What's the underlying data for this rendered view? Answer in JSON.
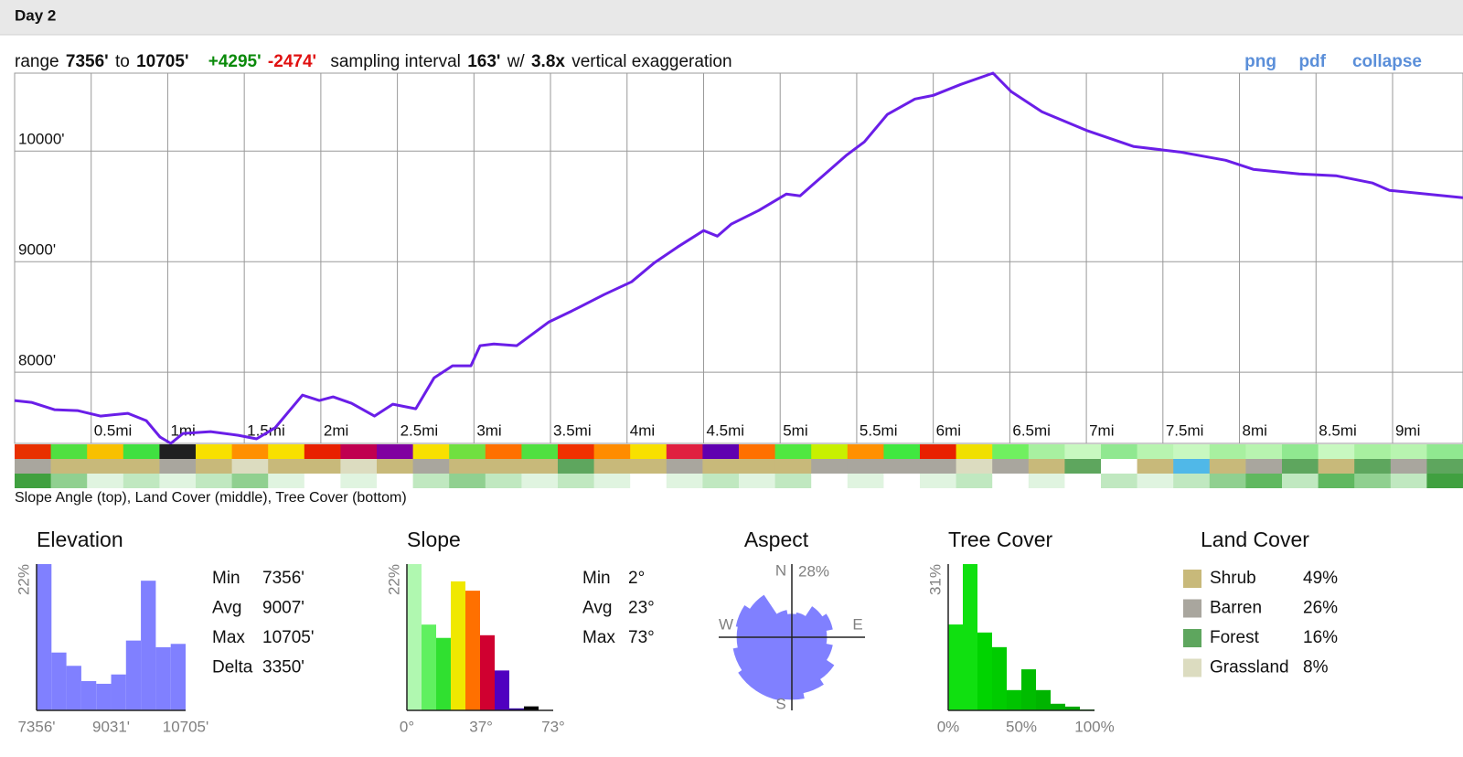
{
  "header": {
    "title": "Day 2"
  },
  "summary": {
    "range_label": "range",
    "min": "7356'",
    "to": "to",
    "max": "10705'",
    "gain": "+4295'",
    "loss": "-2474'",
    "interval_label": "sampling interval",
    "interval": "163'",
    "with": "w/",
    "exaggeration": "3.8x",
    "exaggeration_label": "vertical exaggeration"
  },
  "links": [
    "png",
    "pdf",
    "collapse"
  ],
  "chart_data": [
    {
      "type": "line",
      "x": [
        0,
        0.11,
        0.26,
        0.41,
        0.56,
        0.74,
        0.86,
        0.95,
        1.02,
        1.1,
        1.28,
        1.46,
        1.58,
        1.7,
        1.88,
        1.99,
        2.08,
        2.2,
        2.35,
        2.47,
        2.62,
        2.74,
        2.86,
        2.98,
        3.04,
        3.13,
        3.28,
        3.49,
        3.64,
        3.85,
        4.03,
        4.18,
        4.33,
        4.5,
        4.59,
        4.68,
        4.86,
        5.04,
        5.13,
        5.28,
        5.43,
        5.55,
        5.7,
        5.88,
        6.0,
        6.18,
        6.39,
        6.51,
        6.71,
        7.01,
        7.31,
        7.61,
        7.91,
        8.09,
        8.39,
        8.63,
        8.87,
        8.98,
        9.46
      ],
      "series": [
        {
          "color": "#6a1ee8",
          "values": [
            7744,
            7727,
            7661,
            7653,
            7603,
            7628,
            7562,
            7413,
            7356,
            7446,
            7463,
            7430,
            7397,
            7496,
            7793,
            7744,
            7777,
            7719,
            7603,
            7711,
            7669,
            7950,
            8058,
            8058,
            8240,
            8256,
            8240,
            8455,
            8554,
            8702,
            8818,
            8992,
            9132,
            9281,
            9231,
            9339,
            9463,
            9611,
            9595,
            9777,
            9959,
            10083,
            10331,
            10471,
            10504,
            10603,
            10705,
            10537,
            10355,
            10182,
            10041,
            9992,
            9917,
            9835,
            9793,
            9777,
            9711,
            9645,
            9578
          ]
        }
      ],
      "xlim": [
        0,
        9.46
      ],
      "xticks": [
        {
          "value": 0.5,
          "label": "0.5mi"
        },
        {
          "value": 1,
          "label": "1mi"
        },
        {
          "value": 1.5,
          "label": "1.5mi"
        },
        {
          "value": 2,
          "label": "2mi"
        },
        {
          "value": 2.5,
          "label": "2.5mi"
        },
        {
          "value": 3,
          "label": "3mi"
        },
        {
          "value": 3.5,
          "label": "3.5mi"
        },
        {
          "value": 4,
          "label": "4mi"
        },
        {
          "value": 4.5,
          "label": "4.5mi"
        },
        {
          "value": 5,
          "label": "5mi"
        },
        {
          "value": 5.5,
          "label": "5.5mi"
        },
        {
          "value": 6,
          "label": "6mi"
        },
        {
          "value": 6.5,
          "label": "6.5mi"
        },
        {
          "value": 7,
          "label": "7mi"
        },
        {
          "value": 7.5,
          "label": "7.5mi"
        },
        {
          "value": 8,
          "label": "8mi"
        },
        {
          "value": 8.5,
          "label": "8.5mi"
        },
        {
          "value": 9,
          "label": "9mi"
        }
      ],
      "ylim": [
        7356,
        10705
      ],
      "yticks": [
        {
          "value": 8000,
          "label": "8000'"
        },
        {
          "value": 9000,
          "label": "9000'"
        },
        {
          "value": 10000,
          "label": "10000'"
        }
      ],
      "grid": true
    },
    {
      "type": "histogram",
      "title": "Elevation",
      "color": "#8080ff",
      "bins": [
        7356,
        7691,
        8026,
        8361,
        8696,
        9031,
        9365,
        9700,
        10035,
        10370,
        10705
      ],
      "values": [
        22,
        8.7,
        6.7,
        4.4,
        4.0,
        5.4,
        10.5,
        19.5,
        9.5,
        10.0
      ],
      "xlim": [
        7356,
        10705
      ],
      "xticks": [
        {
          "value": 7356,
          "label": "7356'"
        },
        {
          "value": 9031,
          "label": "9031'"
        },
        {
          "value": 10705,
          "label": "10705'"
        }
      ],
      "ylim": [
        0,
        22
      ],
      "yticks": [
        {
          "value": 22,
          "label": "22%"
        }
      ]
    },
    {
      "type": "histogram",
      "title": "Slope",
      "colors": [
        "#b0f8b0",
        "#60f060",
        "#30e030",
        "#f0e800",
        "#ff7000",
        "#d00030",
        "#5000c0",
        "#3000a0",
        "#000000"
      ],
      "bins": [
        0,
        7.3,
        14.6,
        21.9,
        29.2,
        36.5,
        43.8,
        51.1,
        58.4,
        65.7
      ],
      "values": [
        22,
        12.9,
        10.9,
        19.4,
        18.0,
        11.3,
        6.0,
        0.3,
        0.6
      ],
      "xlim": [
        0,
        73
      ],
      "xticks": [
        {
          "value": 0,
          "label": "0°"
        },
        {
          "value": 37,
          "label": "37°"
        },
        {
          "value": 73,
          "label": "73°"
        }
      ],
      "ylim": [
        0,
        22
      ],
      "yticks": [
        {
          "value": 22,
          "label": "22%"
        }
      ]
    },
    {
      "type": "polar",
      "title": "Aspect",
      "color": "#8080ff",
      "categories": [
        "N",
        null,
        null,
        null,
        "E",
        null,
        null,
        null,
        "S",
        null,
        null,
        null,
        "W",
        null,
        null,
        null
      ],
      "values": [
        8.8,
        9.5,
        14,
        15.8,
        13.3,
        15.8,
        19.3,
        21.7,
        23.8,
        24.5,
        24.5,
        22.8,
        21,
        21.7,
        19.3,
        10.5
      ],
      "rlim": [
        0,
        28
      ],
      "rticks": [
        {
          "value": 28,
          "label": "28%"
        }
      ]
    },
    {
      "type": "histogram",
      "title": "Tree Cover",
      "colors": [
        "#10e010",
        "#10e010",
        "#00d400",
        "#00cc00",
        "#00c400",
        "#00bc00",
        "#00b400",
        "#00b000",
        "#00a800",
        "#00a000"
      ],
      "bins": [
        0,
        10,
        20,
        30,
        40,
        50,
        60,
        70,
        80,
        90,
        100
      ],
      "values": [
        18.2,
        31,
        16.5,
        13.4,
        4.3,
        8.7,
        4.3,
        1.4,
        0.8,
        0.2
      ],
      "xlim": [
        0,
        100
      ],
      "xticks": [
        {
          "value": 0,
          "label": "0%"
        },
        {
          "value": 50,
          "label": "50%"
        },
        {
          "value": 100,
          "label": "100%"
        }
      ],
      "ylim": [
        0,
        31
      ],
      "yticks": [
        {
          "value": 31,
          "label": "31%"
        }
      ]
    }
  ],
  "strips": {
    "slope": [
      "#e83000",
      "#50e040",
      "#f8c000",
      "#40e040",
      "#202020",
      "#f8e000",
      "#ff9000",
      "#f8e000",
      "#e82000",
      "#c00050",
      "#8000a0",
      "#f8e000",
      "#70e040",
      "#ff7000",
      "#50e040",
      "#f03000",
      "#ff8c00",
      "#f8e000",
      "#e02040",
      "#6000b0",
      "#ff7000",
      "#50e840",
      "#c8f000",
      "#ff9000",
      "#40e840",
      "#e82000",
      "#f0e000",
      "#70f060",
      "#a8f0a0",
      "#c8f8c0",
      "#90e890",
      "#b8f4b0",
      "#c8f8c0",
      "#a8f0a0",
      "#b8f4b0",
      "#90e890",
      "#c8f8c0",
      "#a8f0a0",
      "#b8f4b0",
      "#90e890"
    ],
    "land_cover": [
      "#a9a69e",
      "#c8b97a",
      "#c8b97a",
      "#c8b97a",
      "#a9a69e",
      "#c8b97a",
      "#dcdcc0",
      "#c8b97a",
      "#c8b97a",
      "#dcdcc0",
      "#c8b97a",
      "#a9a69e",
      "#c8b97a",
      "#c8b97a",
      "#c8b97a",
      "#5ea65e",
      "#c8b97a",
      "#c8b97a",
      "#a9a69e",
      "#c8b97a",
      "#c8b97a",
      "#c8b97a",
      "#a9a69e",
      "#a9a69e",
      "#a9a69e",
      "#a9a69e",
      "#dcdcc0",
      "#a9a69e",
      "#c8b97a",
      "#5ea65e",
      "#ffffff",
      "#c8b97a",
      "#50b8e8",
      "#c8b97a",
      "#a9a69e",
      "#5ea65e",
      "#c8b97a",
      "#5ea65e",
      "#a9a69e",
      "#5ea65e"
    ],
    "tree_cover": [
      "#40a040",
      "#90d090",
      "#e0f4e0",
      "#c0e8c0",
      "#e0f4e0",
      "#c0e8c0",
      "#90d090",
      "#e0f4e0",
      "#ffffff",
      "#e0f4e0",
      "#ffffff",
      "#c0e8c0",
      "#90d090",
      "#c0e8c0",
      "#e0f4e0",
      "#c0e8c0",
      "#e0f4e0",
      "#ffffff",
      "#e0f4e0",
      "#c0e8c0",
      "#e0f4e0",
      "#c0e8c0",
      "#ffffff",
      "#e0f4e0",
      "#ffffff",
      "#e0f4e0",
      "#c0e8c0",
      "#ffffff",
      "#e0f4e0",
      "#ffffff",
      "#c0e8c0",
      "#e0f4e0",
      "#c0e8c0",
      "#90d090",
      "#60b860",
      "#c0e8c0",
      "#60b860",
      "#90d090",
      "#c0e8c0",
      "#40a040"
    ],
    "caption": "Slope Angle (top), Land Cover (middle), Tree Cover (bottom)"
  },
  "elevation_stats": [
    {
      "label": "Min",
      "value": "7356'"
    },
    {
      "label": "Avg",
      "value": "9007'"
    },
    {
      "label": "Max",
      "value": "10705'"
    },
    {
      "label": "Delta",
      "value": "3350'"
    }
  ],
  "slope_stats": [
    {
      "label": "Min",
      "value": "2°"
    },
    {
      "label": "Avg",
      "value": "23°"
    },
    {
      "label": "Max",
      "value": "73°"
    }
  ],
  "land_cover": {
    "title": "Land Cover",
    "rows": [
      {
        "name": "Shrub",
        "color": "#c8b97a",
        "share": "49%"
      },
      {
        "name": "Barren",
        "color": "#a9a69e",
        "share": "26%"
      },
      {
        "name": "Forest",
        "color": "#5ea65e",
        "share": "16%"
      },
      {
        "name": "Grassland",
        "color": "#dcdcc0",
        "share": "8%"
      }
    ]
  }
}
